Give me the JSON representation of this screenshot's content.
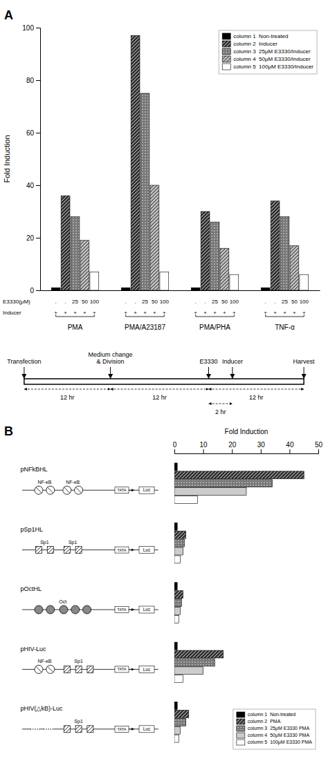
{
  "chart_data": [
    {
      "type": "bar",
      "title": "A",
      "categories": [
        "PMA",
        "PMA/A23187",
        "PMA/PHA",
        "TNF-α"
      ],
      "series": [
        {
          "name": "column 1  Non-treated",
          "color": "#000000",
          "values": [
            1,
            1,
            1,
            1
          ]
        },
        {
          "name": "column 2  Inducer",
          "color": "#333333",
          "values": [
            36,
            97,
            30,
            34
          ]
        },
        {
          "name": "column 3  25μM E3330/Inducer",
          "color": "#777777",
          "values": [
            28,
            75,
            26,
            28
          ]
        },
        {
          "name": "column 4  50μM E3330/Inducer",
          "color": "#bbbbbb",
          "values": [
            19,
            40,
            16,
            17
          ]
        },
        {
          "name": "column 5  100μM E3330/Inducer",
          "color": "#ffffff",
          "values": [
            7,
            7,
            6,
            6
          ]
        }
      ],
      "ylabel": "Fold Induction",
      "ylim": [
        0,
        100
      ],
      "yticks": [
        0,
        20,
        40,
        60,
        80,
        100
      ],
      "legend": "top-right",
      "annotations": [
        {
          "text": "E3330(μM)",
          "labels": [
            ".",
            ".",
            "25",
            "50",
            "100"
          ]
        },
        {
          "text": "Inducer",
          "labels": [
            "+",
            "+",
            "+",
            "+",
            "+"
          ]
        }
      ]
    },
    {
      "type": "timeline",
      "events": [
        "Transfection",
        "Medium change\n& Division",
        "E3330",
        "Inducer",
        "Harvest"
      ],
      "intervals": [
        "12 hr",
        "12 hr",
        "12 hr",
        "2 hr"
      ]
    },
    {
      "type": "bar",
      "orientation": "horizontal",
      "title": "B",
      "categories": [
        "pNFkBHL",
        "pSp1HL",
        "pOctHL",
        "pHIV-Luc",
        "pHIV(△kB)-Luc"
      ],
      "series": [
        {
          "name": "column 1  Non-treated",
          "color": "#000000",
          "values": [
            1,
            1,
            1,
            1,
            1
          ]
        },
        {
          "name": "column 2  PMA",
          "color": "#333333",
          "values": [
            45,
            4,
            3,
            17,
            5
          ]
        },
        {
          "name": "column 3  25μM E3330 PMA",
          "color": "#777777",
          "values": [
            34,
            3.5,
            2.5,
            14,
            4
          ]
        },
        {
          "name": "column 4  50μM E3330 PMA",
          "color": "#cccccc",
          "values": [
            25,
            3,
            2,
            10,
            2
          ]
        },
        {
          "name": "column 5  100μM E3330 PMA",
          "color": "#ffffff",
          "values": [
            8,
            2,
            1.5,
            3,
            1.5
          ]
        }
      ],
      "xlabel": "Fold Induction",
      "xlim": [
        0,
        50
      ],
      "xticks": [
        0,
        10,
        20,
        30,
        40,
        50
      ],
      "legend": "bottom-right",
      "annotations": [
        [
          "NF-κB",
          "NF-κB"
        ],
        [
          "Sp1",
          "Sp1"
        ],
        [
          "Oct"
        ],
        [
          "NF-κB",
          "Sp1"
        ],
        [
          "Sp1"
        ]
      ],
      "element_labels": [
        "TATA",
        "Luc"
      ]
    }
  ]
}
